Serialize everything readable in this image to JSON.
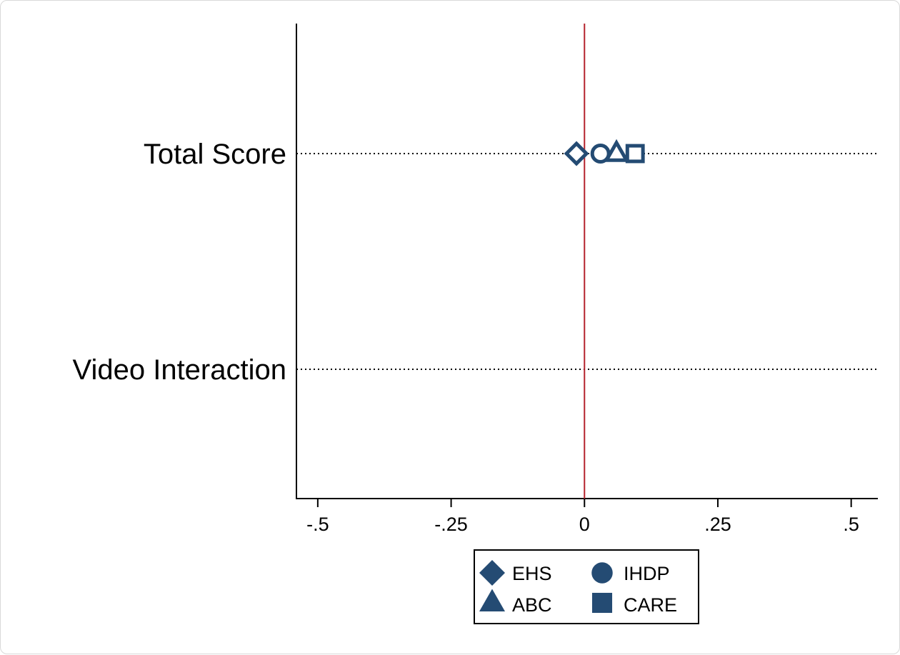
{
  "chart_data": {
    "type": "scatter",
    "title": "",
    "xlabel": "",
    "ylabel": "",
    "xlim": [
      -0.54,
      0.55
    ],
    "xticks": [
      -0.5,
      -0.25,
      0,
      0.25,
      0.5
    ],
    "xtick_labels": [
      "-.5",
      "-.25",
      "0",
      ".25",
      ".5"
    ],
    "rows": [
      "Total Score",
      "Video Interaction"
    ],
    "reference_line": {
      "x": 0,
      "color": "#b5232d"
    },
    "grid": "dotted horizontal lines at each row",
    "legend_placement": "bottom-center",
    "series": [
      {
        "name": "EHS",
        "marker": "diamond",
        "color": "#244b73",
        "points": [
          {
            "row": "Total Score",
            "x": -0.015
          }
        ]
      },
      {
        "name": "IHDP",
        "marker": "circle",
        "color": "#244b73",
        "points": [
          {
            "row": "Total Score",
            "x": 0.03
          }
        ]
      },
      {
        "name": "ABC",
        "marker": "triangle",
        "color": "#244b73",
        "points": [
          {
            "row": "Total Score",
            "x": 0.06
          }
        ]
      },
      {
        "name": "CARE",
        "marker": "square",
        "color": "#244b73",
        "points": [
          {
            "row": "Total Score",
            "x": 0.095
          }
        ]
      }
    ]
  }
}
